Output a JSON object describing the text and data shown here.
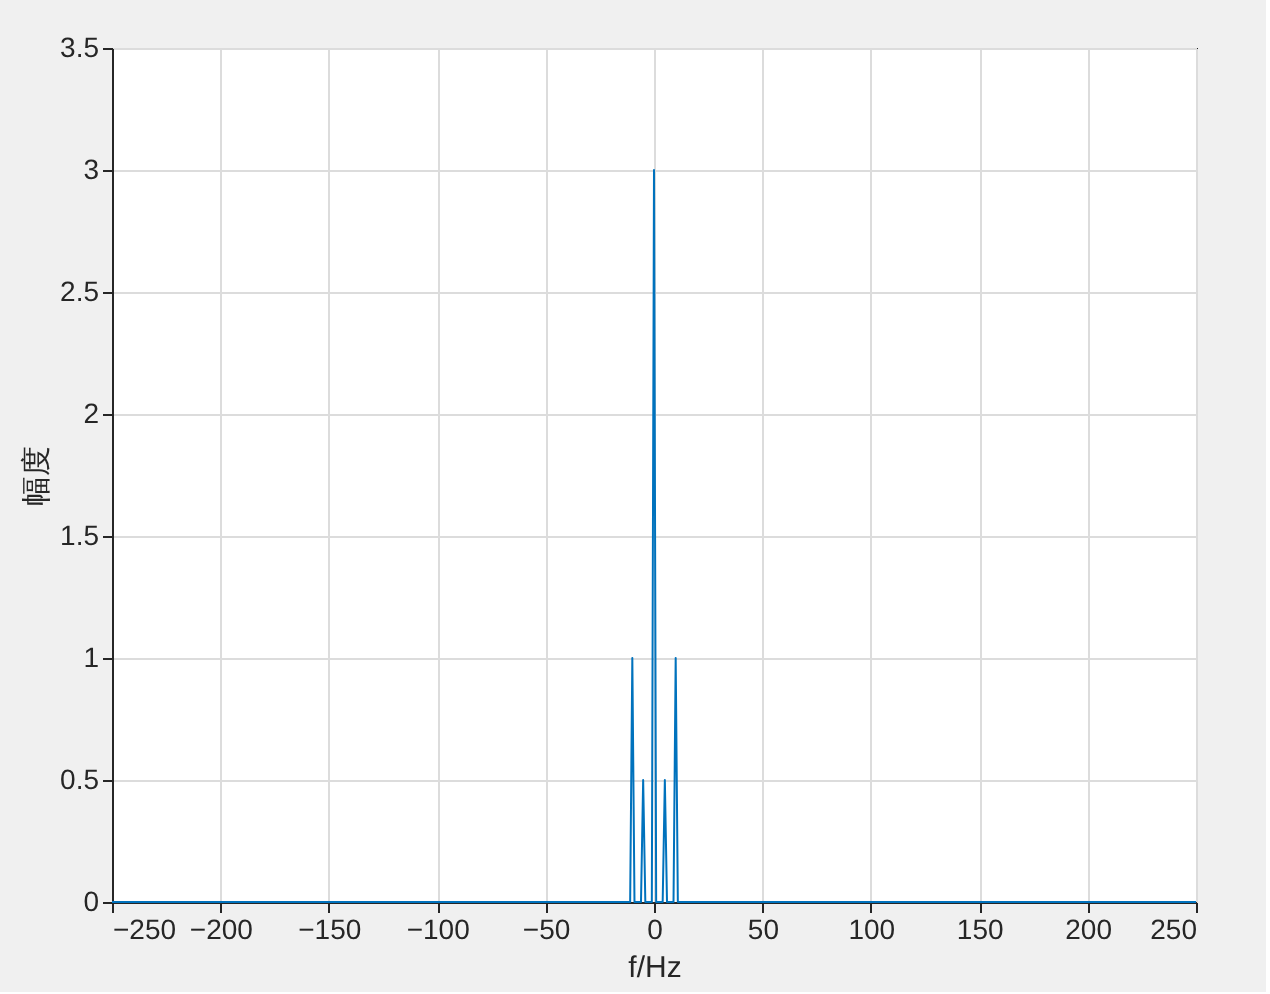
{
  "chart_data": {
    "type": "line",
    "xlabel": "f/Hz",
    "ylabel": "幅度",
    "x": [
      -250,
      -11,
      -10,
      -9,
      -6,
      -5,
      -4,
      -1,
      0,
      1,
      4,
      5,
      6,
      9,
      10,
      11,
      250
    ],
    "series": [
      {
        "color": "#0072bd",
        "values": [
          0,
          0,
          1,
          0,
          0,
          0.5,
          0,
          0,
          3,
          0,
          0,
          0.5,
          0,
          0,
          1,
          0,
          0
        ]
      }
    ],
    "xlim": [
      -250,
      250
    ],
    "xticks": [
      -250,
      -200,
      -150,
      -100,
      -50,
      0,
      50,
      100,
      150,
      200,
      250
    ],
    "ylim": [
      0,
      3.5
    ],
    "yticks": [
      0,
      0.5,
      1,
      1.5,
      2,
      2.5,
      3,
      3.5
    ],
    "grid": true,
    "legend": false,
    "marker": "none",
    "line_style": "solid"
  }
}
